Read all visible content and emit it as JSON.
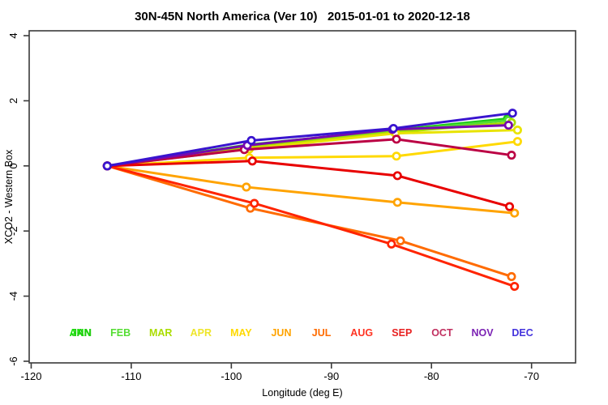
{
  "page": {
    "background": "#ffffff"
  },
  "chart_data": {
    "type": "line",
    "title": "30N-45N North America (Ver 10)   2015-01-01 to 2020-12-18",
    "xlabel": "Longitude (deg E)",
    "ylabel": "XCO2 - Western Box",
    "xlim": [
      -120.2,
      -65.6
    ],
    "ylim": [
      -6.05,
      4.15
    ],
    "x_ticks": [
      -120,
      -110,
      -100,
      -90,
      -80,
      -70
    ],
    "y_ticks": [
      -6,
      -4,
      -2,
      0,
      2,
      4
    ],
    "grid": false,
    "box_color": "#3a3a3a",
    "background": "#ffffff",
    "marker": "open-circle",
    "legend_position": "bottom-inside-row",
    "legend": [
      {
        "label": "ANN",
        "color": "#11E400",
        "slot": 0
      },
      {
        "label": "JAN",
        "color": "#22CC11",
        "slot": 0
      },
      {
        "label": "FEB",
        "color": "#55DD33",
        "slot": 1
      },
      {
        "label": "MAR",
        "color": "#AADD00",
        "slot": 2
      },
      {
        "label": "APR",
        "color": "#EEE52A",
        "slot": 3
      },
      {
        "label": "MAY",
        "color": "#FFD900",
        "slot": 4
      },
      {
        "label": "JUN",
        "color": "#FFA300",
        "slot": 5
      },
      {
        "label": "JUL",
        "color": "#FF6B00",
        "slot": 6
      },
      {
        "label": "AUG",
        "color": "#FF3322",
        "slot": 7
      },
      {
        "label": "SEP",
        "color": "#E82222",
        "slot": 8
      },
      {
        "label": "OCT",
        "color": "#C13060",
        "slot": 9
      },
      {
        "label": "NOV",
        "color": "#7B22B4",
        "slot": 10
      },
      {
        "label": "DEC",
        "color": "#4433DD",
        "slot": 11
      }
    ],
    "series": [
      {
        "name": "JAN",
        "color": "#16C816",
        "x": [
          -112.4,
          -98.3,
          -83.8,
          -72.4
        ],
        "y": [
          0.0,
          0.65,
          1.1,
          1.45
        ]
      },
      {
        "name": "FEB",
        "color": "#55DD33",
        "x": [
          -112.4,
          -98.3,
          -83.8,
          -72.3
        ],
        "y": [
          0.0,
          0.62,
          1.07,
          1.4
        ]
      },
      {
        "name": "MAR",
        "color": "#AADD00",
        "x": [
          -112.4,
          -98.2,
          -83.7,
          -72.0
        ],
        "y": [
          0.0,
          0.58,
          1.03,
          1.33
        ]
      },
      {
        "name": "APR",
        "color": "#E8E300",
        "x": [
          -112.4,
          -98.2,
          -83.6,
          -71.4
        ],
        "y": [
          0.0,
          0.52,
          1.0,
          1.1
        ]
      },
      {
        "name": "MAY",
        "color": "#FFD900",
        "x": [
          -112.4,
          -98.2,
          -83.5,
          -71.4
        ],
        "y": [
          0.0,
          0.25,
          0.3,
          0.75
        ]
      },
      {
        "name": "JUN",
        "color": "#FFA300",
        "x": [
          -112.4,
          -98.5,
          -83.4,
          -71.7
        ],
        "y": [
          0.0,
          -0.65,
          -1.12,
          -1.45
        ]
      },
      {
        "name": "JUL",
        "color": "#FF6B00",
        "x": [
          -112.4,
          -98.1,
          -83.1,
          -72.0
        ],
        "y": [
          0.0,
          -1.3,
          -2.3,
          -3.4
        ]
      },
      {
        "name": "AUG",
        "color": "#FF2400",
        "x": [
          -112.4,
          -97.7,
          -84.0,
          -71.7
        ],
        "y": [
          0.0,
          -1.15,
          -2.4,
          -3.7
        ]
      },
      {
        "name": "SEP",
        "color": "#E80000",
        "x": [
          -112.4,
          -97.9,
          -83.4,
          -72.2
        ],
        "y": [
          0.0,
          0.15,
          -0.3,
          -1.25
        ]
      },
      {
        "name": "OCT",
        "color": "#BB0044",
        "x": [
          -112.4,
          -98.7,
          -83.5,
          -72.0
        ],
        "y": [
          0.0,
          0.5,
          0.82,
          0.33
        ]
      },
      {
        "name": "NOV",
        "color": "#7708AE",
        "x": [
          -112.4,
          -98.4,
          -83.9,
          -72.3
        ],
        "y": [
          0.0,
          0.63,
          1.12,
          1.25
        ]
      },
      {
        "name": "DEC",
        "color": "#3914CF",
        "x": [
          -112.4,
          -98.0,
          -83.8,
          -71.9
        ],
        "y": [
          0.0,
          0.78,
          1.15,
          1.62
        ]
      }
    ]
  }
}
